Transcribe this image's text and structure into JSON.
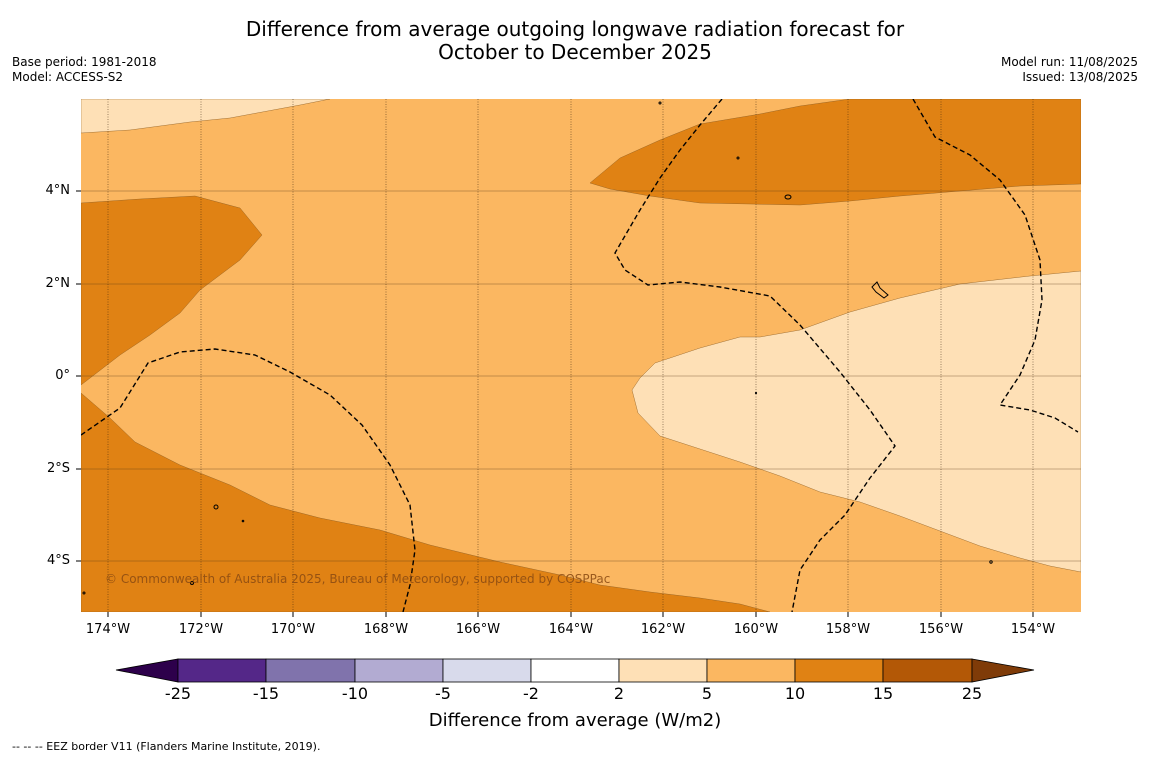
{
  "title_line1": "Difference from average outgoing longwave radiation forecast for",
  "title_line2": "October to December 2025",
  "base_period": "Base period: 1981-2018",
  "model": "Model: ACCESS-S2",
  "model_run": "Model run: 11/08/2025",
  "issued": "Issued: 13/08/2025",
  "lat_labels": [
    "4°N",
    "2°N",
    "0°",
    "2°S",
    "4°S"
  ],
  "lon_labels": [
    "174°W",
    "172°W",
    "170°W",
    "168°W",
    "166°W",
    "164°W",
    "162°W",
    "160°W",
    "158°W",
    "156°W",
    "154°W"
  ],
  "colorbar_ticks": [
    "-25",
    "-15",
    "-10",
    "-5",
    "-2",
    "2",
    "5",
    "10",
    "15",
    "25"
  ],
  "colorbar_title": "Difference from average (W/m2)",
  "copyright": "© Commonwealth of Australia 2025, Bureau of Meteorology, supported by COSPPac",
  "footnote": "--  --  -- EEZ border V11 (Flanders Marine Institute, 2019).",
  "colors": {
    "lt_neg25": "#2d004b",
    "neg25_neg15": "#542788",
    "neg15_neg10": "#8073ac",
    "neg10_neg5": "#b2abd2",
    "neg5_neg2": "#d8daeb",
    "neg2_2": "#ffffff",
    "pos2_5": "#fee0b6",
    "pos5_10": "#fbb761",
    "pos10_15": "#e08214",
    "pos15_25": "#b35806",
    "gt25": "#7f3b08"
  }
}
